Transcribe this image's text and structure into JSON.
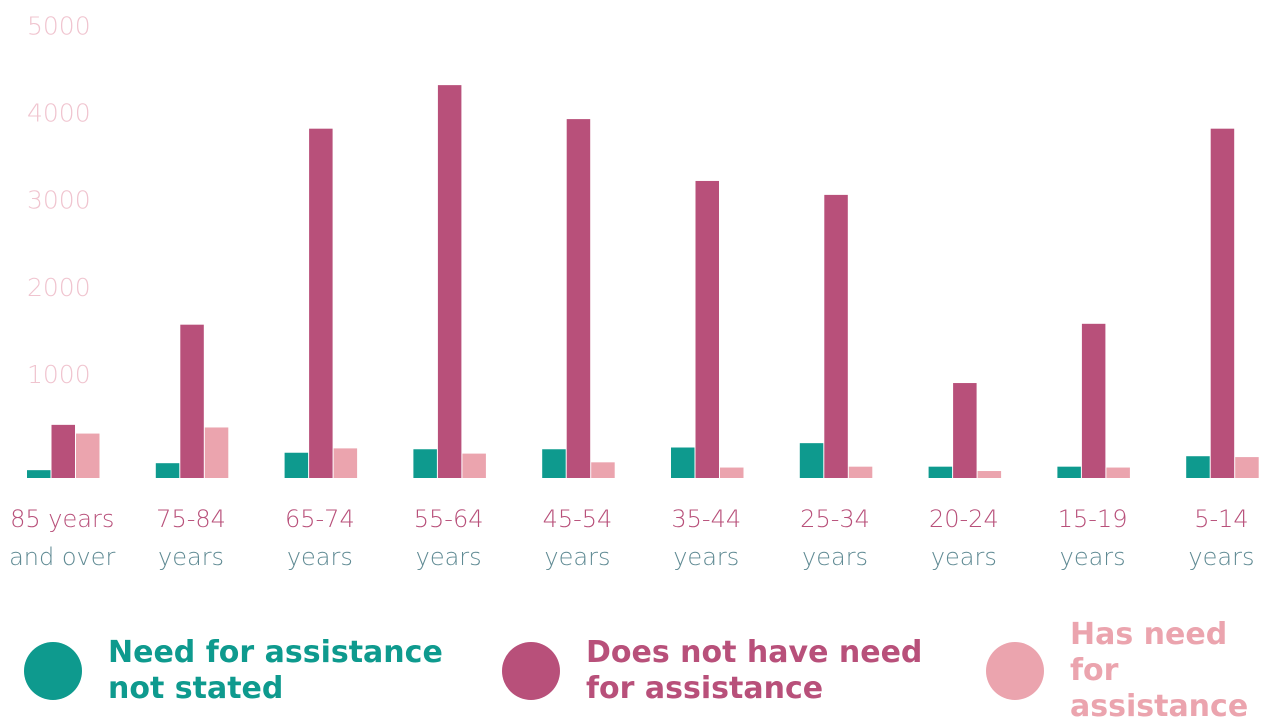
{
  "chart_data": {
    "type": "bar",
    "categories": [
      [
        "85 years",
        "and over"
      ],
      [
        "75-84",
        "years"
      ],
      [
        "65-74",
        "years"
      ],
      [
        "55-64",
        "years"
      ],
      [
        "45-54",
        "years"
      ],
      [
        "35-44",
        "years"
      ],
      [
        "25-34",
        "years"
      ],
      [
        "20-24",
        "years"
      ],
      [
        "15-19",
        "years"
      ],
      [
        "5-14",
        "years"
      ]
    ],
    "series": [
      {
        "name": "Need for assistance not stated",
        "color": "#0e9a8e",
        "values": [
          90,
          170,
          290,
          330,
          330,
          350,
          400,
          130,
          130,
          250
        ]
      },
      {
        "name": "Does not have need for assistance",
        "color": "#b8507a",
        "values": [
          610,
          1760,
          4010,
          4510,
          4120,
          3410,
          3250,
          1090,
          1770,
          4010
        ]
      },
      {
        "name": "Has need for assistance",
        "color": "#eba4ae",
        "values": [
          510,
          580,
          340,
          280,
          180,
          120,
          130,
          80,
          120,
          240
        ]
      }
    ],
    "ylim": [
      0,
      5000
    ],
    "yticks": [
      1000,
      2000,
      3000,
      4000,
      5000
    ],
    "grid": true,
    "legend_position": "bottom"
  },
  "legend": {
    "items": [
      {
        "label": "Need for assistance\nnot stated",
        "color": "#0e9a8e"
      },
      {
        "label": "Does not have need\nfor assistance",
        "color": "#b8507a"
      },
      {
        "label": "Has need for\nassistance",
        "color": "#eba4ae"
      }
    ]
  }
}
